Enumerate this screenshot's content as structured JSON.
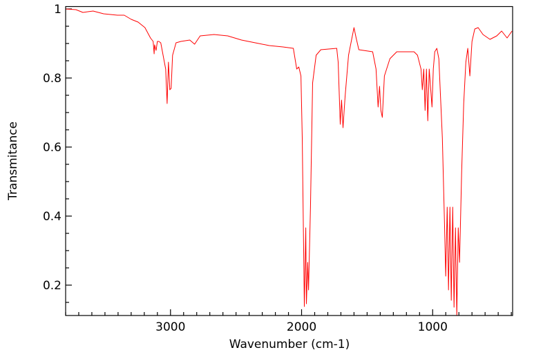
{
  "chart_data": {
    "type": "line",
    "title": "",
    "xlabel": "Wavenumber (cm-1)",
    "ylabel": "Transmitance",
    "xlim": [
      3800,
      390
    ],
    "ylim": [
      0.112,
      1.007
    ],
    "x_reversed": true,
    "grid": false,
    "x_major_ticks": [
      3000,
      2000,
      1000
    ],
    "x_minor_step": 100,
    "y_major_ticks": [
      0.2,
      0.4,
      0.6,
      0.8,
      1
    ],
    "y_tick_labels": [
      "0.2",
      "0.4",
      "0.6",
      "0.8",
      "1"
    ],
    "y_minor_step": 0.05,
    "series": [
      {
        "name": "spectrum",
        "color": "#ff0000",
        "points": [
          [
            3800,
            1.0
          ],
          [
            3721,
            0.998
          ],
          [
            3668,
            0.99
          ],
          [
            3590,
            0.994
          ],
          [
            3510,
            0.986
          ],
          [
            3405,
            0.982
          ],
          [
            3353,
            0.982
          ],
          [
            3300,
            0.97
          ],
          [
            3247,
            0.962
          ],
          [
            3195,
            0.946
          ],
          [
            3153,
            0.916
          ],
          [
            3132,
            0.906
          ],
          [
            3125,
            0.87
          ],
          [
            3121,
            0.896
          ],
          [
            3110,
            0.88
          ],
          [
            3100,
            0.906
          ],
          [
            3089,
            0.906
          ],
          [
            3074,
            0.902
          ],
          [
            3037,
            0.826
          ],
          [
            3026,
            0.726
          ],
          [
            3016,
            0.846
          ],
          [
            3005,
            0.766
          ],
          [
            2995,
            0.77
          ],
          [
            2984,
            0.866
          ],
          [
            2958,
            0.902
          ],
          [
            2921,
            0.906
          ],
          [
            2853,
            0.91
          ],
          [
            2816,
            0.898
          ],
          [
            2774,
            0.922
          ],
          [
            2668,
            0.926
          ],
          [
            2563,
            0.922
          ],
          [
            2458,
            0.91
          ],
          [
            2353,
            0.902
          ],
          [
            2247,
            0.894
          ],
          [
            2142,
            0.89
          ],
          [
            2063,
            0.886
          ],
          [
            2037,
            0.826
          ],
          [
            2021,
            0.832
          ],
          [
            2005,
            0.806
          ],
          [
            1995,
            0.626
          ],
          [
            1979,
            0.138
          ],
          [
            1968,
            0.366
          ],
          [
            1963,
            0.146
          ],
          [
            1953,
            0.266
          ],
          [
            1947,
            0.186
          ],
          [
            1932,
            0.426
          ],
          [
            1916,
            0.786
          ],
          [
            1889,
            0.866
          ],
          [
            1853,
            0.882
          ],
          [
            1732,
            0.886
          ],
          [
            1721,
            0.846
          ],
          [
            1705,
            0.666
          ],
          [
            1695,
            0.736
          ],
          [
            1684,
            0.656
          ],
          [
            1668,
            0.746
          ],
          [
            1642,
            0.866
          ],
          [
            1616,
            0.916
          ],
          [
            1600,
            0.946
          ],
          [
            1584,
            0.916
          ],
          [
            1563,
            0.882
          ],
          [
            1458,
            0.876
          ],
          [
            1432,
            0.826
          ],
          [
            1416,
            0.716
          ],
          [
            1405,
            0.776
          ],
          [
            1395,
            0.706
          ],
          [
            1384,
            0.686
          ],
          [
            1368,
            0.806
          ],
          [
            1326,
            0.856
          ],
          [
            1274,
            0.876
          ],
          [
            1142,
            0.876
          ],
          [
            1116,
            0.866
          ],
          [
            1089,
            0.826
          ],
          [
            1079,
            0.766
          ],
          [
            1068,
            0.826
          ],
          [
            1058,
            0.706
          ],
          [
            1047,
            0.826
          ],
          [
            1037,
            0.676
          ],
          [
            1026,
            0.826
          ],
          [
            1005,
            0.716
          ],
          [
            995,
            0.826
          ],
          [
            984,
            0.876
          ],
          [
            968,
            0.886
          ],
          [
            953,
            0.856
          ],
          [
            926,
            0.626
          ],
          [
            910,
            0.386
          ],
          [
            900,
            0.226
          ],
          [
            889,
            0.426
          ],
          [
            879,
            0.186
          ],
          [
            868,
            0.426
          ],
          [
            858,
            0.156
          ],
          [
            847,
            0.426
          ],
          [
            837,
            0.136
          ],
          [
            826,
            0.366
          ],
          [
            816,
            0.112
          ],
          [
            805,
            0.366
          ],
          [
            795,
            0.266
          ],
          [
            779,
            0.526
          ],
          [
            763,
            0.726
          ],
          [
            747,
            0.846
          ],
          [
            732,
            0.886
          ],
          [
            716,
            0.806
          ],
          [
            700,
            0.906
          ],
          [
            679,
            0.942
          ],
          [
            653,
            0.946
          ],
          [
            616,
            0.926
          ],
          [
            563,
            0.912
          ],
          [
            511,
            0.922
          ],
          [
            474,
            0.936
          ],
          [
            432,
            0.916
          ],
          [
            395,
            0.936
          ]
        ]
      }
    ]
  }
}
